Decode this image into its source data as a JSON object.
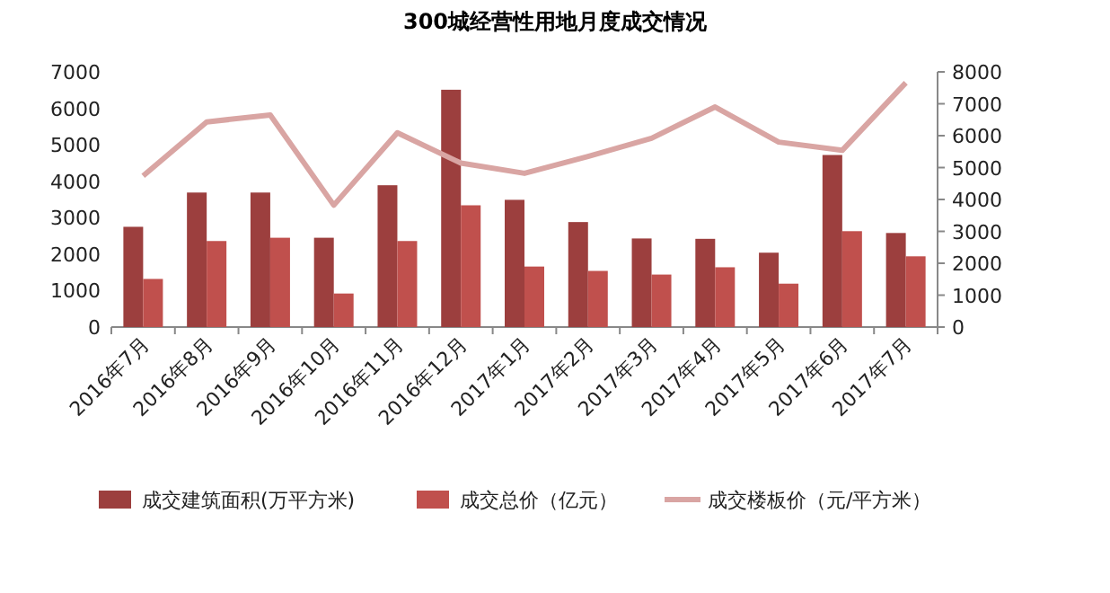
{
  "chart_data": {
    "type": "bar",
    "title": "300城经营性用地月度成交情况",
    "categories": [
      "2016年7月",
      "2016年8月",
      "2016年9月",
      "2016年10月",
      "2016年11月",
      "2016年12月",
      "2017年1月",
      "2017年2月",
      "2017年3月",
      "2017年4月",
      "2017年5月",
      "2017年6月",
      "2017年7月"
    ],
    "series": [
      {
        "name": "成交建筑面积(万平方米)",
        "color": "#9c3f3e",
        "values": [
          2750,
          3690,
          3690,
          2450,
          3890,
          6510,
          3490,
          2880,
          2430,
          2420,
          2040,
          4720,
          2580
        ]
      },
      {
        "name": "成交总价（亿元）",
        "color": "#c0504d",
        "values": [
          1320,
          2360,
          2450,
          920,
          2360,
          3340,
          1660,
          1540,
          1440,
          1640,
          1190,
          2630,
          1940
        ]
      },
      {
        "name": "成交楼板价（元/平方米）",
        "type": "line",
        "axis": "y2",
        "color": "#d9a5a3",
        "values": [
          4740,
          6430,
          6650,
          3820,
          6090,
          5140,
          4820,
          5350,
          5920,
          6900,
          5800,
          5540,
          7660
        ]
      }
    ],
    "ylim": [
      0,
      7000
    ],
    "yticks": [
      0,
      1000,
      2000,
      3000,
      4000,
      5000,
      6000,
      7000
    ],
    "y2lim": [
      0,
      8000
    ],
    "y2ticks": [
      0,
      1000,
      2000,
      3000,
      4000,
      5000,
      6000,
      7000,
      8000
    ],
    "legend": "bottom",
    "grid": false
  }
}
